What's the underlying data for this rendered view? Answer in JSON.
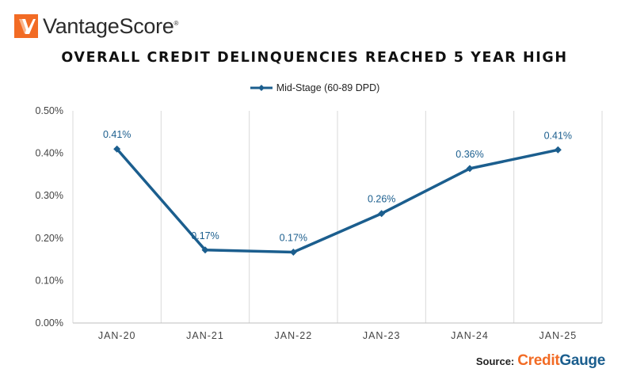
{
  "brand": {
    "name": "VantageScore",
    "reg": "®",
    "logo_icon": "vantagescore-chevron-logo",
    "accent": "#f26b24"
  },
  "chart_data": {
    "type": "line",
    "title": "OVERALL CREDIT DELINQUENCIES REACHED 5 YEAR HIGH",
    "legend_position": "top-center",
    "categories": [
      "JAN-20",
      "JAN-21",
      "JAN-22",
      "JAN-23",
      "JAN-24",
      "JAN-25"
    ],
    "series": [
      {
        "name": "Mid-Stage (60-89 DPD)",
        "color": "#1b5e8e",
        "values": [
          0.41,
          0.172,
          0.167,
          0.258,
          0.364,
          0.408
        ],
        "labels": [
          "0.41%",
          "0.17%",
          "0.17%",
          "0.26%",
          "0.36%",
          "0.41%"
        ]
      }
    ],
    "ylim": [
      0,
      0.5
    ],
    "yticks": [
      "0.00%",
      "0.10%",
      "0.20%",
      "0.30%",
      "0.40%",
      "0.50%"
    ],
    "ytick_values": [
      0,
      0.1,
      0.2,
      0.3,
      0.4,
      0.5
    ],
    "grid": {
      "vertical": true,
      "horizontal": false
    }
  },
  "source": {
    "label": "Source:",
    "brand_part1": "Credit",
    "brand_part2": "Gauge"
  }
}
